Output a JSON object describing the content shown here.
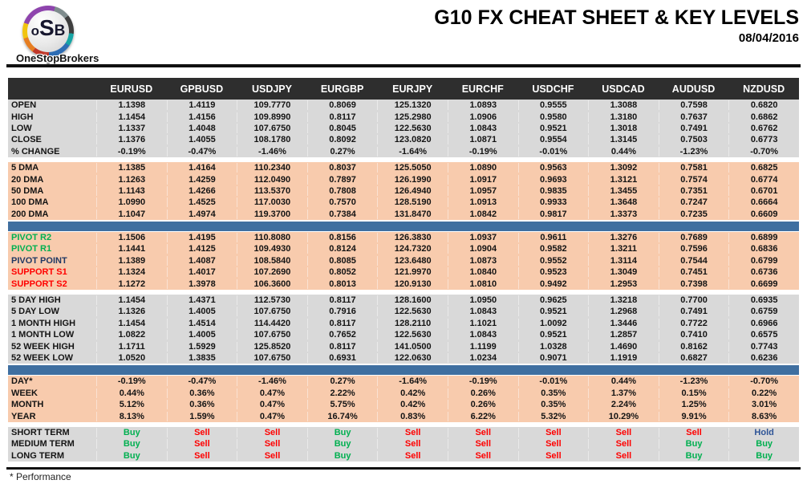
{
  "header": {
    "logo": {
      "o": "o",
      "s": "S",
      "b": "B",
      "brand": "OneStopBrokers"
    },
    "title": "G10 FX CHEAT SHEET & KEY LEVELS",
    "date": "08/04/2016"
  },
  "colors": {
    "header_dark": "#2e2e2e",
    "section_gray": "#D9D9D9",
    "section_peach": "#F8CBAD",
    "separator_blue": "#3F6FA0",
    "buy_green": "#00B050",
    "sell_red": "#FF0000",
    "hold_blue": "#2F5597",
    "pivot_navy": "#1F3864",
    "resistance_green": "#00B050",
    "support_red": "#FF0000"
  },
  "table": {
    "columns": [
      "EURUSD",
      "GPBUSD",
      "USDJPY",
      "EURGBP",
      "EURJPY",
      "EURCHF",
      "USDCHF",
      "USDCAD",
      "AUDUSD",
      "NZDUSD"
    ],
    "signal_colors": {
      "Buy": "#00B050",
      "Sell": "#FF0000",
      "Hold": "#2F5597"
    },
    "sections": [
      {
        "name": "ohlc",
        "bg": "gray",
        "sep": "none",
        "rows": [
          {
            "label": "OPEN",
            "values": [
              "1.1398",
              "1.4119",
              "109.7770",
              "0.8069",
              "125.1320",
              "1.0893",
              "0.9555",
              "1.3088",
              "0.7598",
              "0.6820"
            ]
          },
          {
            "label": "HIGH",
            "values": [
              "1.1454",
              "1.4156",
              "109.8990",
              "0.8117",
              "125.2980",
              "1.0906",
              "0.9580",
              "1.3180",
              "0.7637",
              "0.6862"
            ]
          },
          {
            "label": "LOW",
            "values": [
              "1.1337",
              "1.4048",
              "107.6750",
              "0.8045",
              "122.5630",
              "1.0843",
              "0.9521",
              "1.3018",
              "0.7491",
              "0.6762"
            ]
          },
          {
            "label": "CLOSE",
            "values": [
              "1.1376",
              "1.4055",
              "108.1780",
              "0.8092",
              "123.0820",
              "1.0871",
              "0.9554",
              "1.3145",
              "0.7503",
              "0.6773"
            ]
          },
          {
            "label": "% CHANGE",
            "values": [
              "-0.19%",
              "-0.47%",
              "-1.46%",
              "0.27%",
              "-1.64%",
              "-0.19%",
              "-0.01%",
              "0.44%",
              "-1.23%",
              "-0.70%"
            ]
          }
        ]
      },
      {
        "name": "moving-averages",
        "bg": "peach",
        "sep": "gap",
        "rows": [
          {
            "label": "5 DMA",
            "values": [
              "1.1385",
              "1.4164",
              "110.2340",
              "0.8037",
              "125.5050",
              "1.0890",
              "0.9563",
              "1.3092",
              "0.7581",
              "0.6825"
            ]
          },
          {
            "label": "20 DMA",
            "values": [
              "1.1263",
              "1.4259",
              "112.0490",
              "0.7897",
              "126.1990",
              "1.0917",
              "0.9693",
              "1.3121",
              "0.7574",
              "0.6774"
            ]
          },
          {
            "label": "50 DMA",
            "values": [
              "1.1143",
              "1.4266",
              "113.5370",
              "0.7808",
              "126.4940",
              "1.0957",
              "0.9835",
              "1.3455",
              "0.7351",
              "0.6701"
            ]
          },
          {
            "label": "100 DMA",
            "values": [
              "1.0990",
              "1.4525",
              "117.0030",
              "0.7570",
              "128.5190",
              "1.0913",
              "0.9933",
              "1.3648",
              "0.7247",
              "0.6664"
            ]
          },
          {
            "label": "200 DMA",
            "values": [
              "1.1047",
              "1.4974",
              "119.3700",
              "0.7384",
              "131.8470",
              "1.0842",
              "0.9817",
              "1.3373",
              "0.7235",
              "0.6609"
            ]
          }
        ]
      },
      {
        "name": "pivots",
        "bg": "peach",
        "sep": "bar",
        "rows": [
          {
            "label": "PIVOT R2",
            "label_color": "#00B050",
            "values": [
              "1.1506",
              "1.4195",
              "110.8080",
              "0.8156",
              "126.3830",
              "1.0937",
              "0.9611",
              "1.3276",
              "0.7689",
              "0.6899"
            ]
          },
          {
            "label": "PIVOT R1",
            "label_color": "#00B050",
            "values": [
              "1.1441",
              "1.4125",
              "109.4930",
              "0.8124",
              "124.7320",
              "1.0904",
              "0.9582",
              "1.3211",
              "0.7596",
              "0.6836"
            ]
          },
          {
            "label": "PIVOT POINT",
            "label_color": "#1F3864",
            "values": [
              "1.1389",
              "1.4087",
              "108.5840",
              "0.8085",
              "123.6480",
              "1.0873",
              "0.9552",
              "1.3114",
              "0.7544",
              "0.6799"
            ]
          },
          {
            "label": "SUPPORT S1",
            "label_color": "#FF0000",
            "values": [
              "1.1324",
              "1.4017",
              "107.2690",
              "0.8052",
              "121.9970",
              "1.0840",
              "0.9523",
              "1.3049",
              "0.7451",
              "0.6736"
            ]
          },
          {
            "label": "SUPPORT S2",
            "label_color": "#FF0000",
            "values": [
              "1.1272",
              "1.3978",
              "106.3600",
              "0.8013",
              "120.9130",
              "1.0810",
              "0.9492",
              "1.2953",
              "0.7398",
              "0.6699"
            ]
          }
        ]
      },
      {
        "name": "ranges",
        "bg": "gray",
        "sep": "gap",
        "rows": [
          {
            "label": "5 DAY HIGH",
            "values": [
              "1.1454",
              "1.4371",
              "112.5730",
              "0.8117",
              "128.1600",
              "1.0950",
              "0.9625",
              "1.3218",
              "0.7700",
              "0.6935"
            ]
          },
          {
            "label": "5 DAY LOW",
            "values": [
              "1.1326",
              "1.4005",
              "107.6750",
              "0.7916",
              "122.5630",
              "1.0843",
              "0.9521",
              "1.2968",
              "0.7491",
              "0.6759"
            ]
          },
          {
            "label": "1 MONTH HIGH",
            "values": [
              "1.1454",
              "1.4514",
              "114.4420",
              "0.8117",
              "128.2110",
              "1.1021",
              "1.0092",
              "1.3446",
              "0.7722",
              "0.6966"
            ]
          },
          {
            "label": "1 MONTH LOW",
            "values": [
              "1.0822",
              "1.4005",
              "107.6750",
              "0.7652",
              "122.5630",
              "1.0843",
              "0.9521",
              "1.2857",
              "0.7410",
              "0.6575"
            ]
          },
          {
            "label": "52 WEEK HIGH",
            "values": [
              "1.1711",
              "1.5929",
              "125.8520",
              "0.8117",
              "141.0500",
              "1.1199",
              "1.0328",
              "1.4690",
              "0.8162",
              "0.7743"
            ]
          },
          {
            "label": "52 WEEK LOW",
            "values": [
              "1.0520",
              "1.3835",
              "107.6750",
              "0.6931",
              "122.0630",
              "1.0234",
              "0.9071",
              "1.1919",
              "0.6827",
              "0.6236"
            ]
          }
        ]
      },
      {
        "name": "performance",
        "bg": "peach",
        "sep": "bar",
        "rows": [
          {
            "label": "DAY*",
            "values": [
              "-0.19%",
              "-0.47%",
              "-1.46%",
              "0.27%",
              "-1.64%",
              "-0.19%",
              "-0.01%",
              "0.44%",
              "-1.23%",
              "-0.70%"
            ]
          },
          {
            "label": "WEEK",
            "values": [
              "0.44%",
              "0.36%",
              "0.47%",
              "2.22%",
              "0.42%",
              "0.26%",
              "0.35%",
              "1.37%",
              "0.15%",
              "0.22%"
            ]
          },
          {
            "label": "MONTH",
            "values": [
              "5.12%",
              "0.36%",
              "0.47%",
              "5.75%",
              "0.42%",
              "0.26%",
              "0.35%",
              "2.24%",
              "1.25%",
              "3.01%"
            ]
          },
          {
            "label": "YEAR",
            "values": [
              "8.13%",
              "1.59%",
              "0.47%",
              "16.74%",
              "0.83%",
              "6.22%",
              "5.32%",
              "10.29%",
              "9.91%",
              "8.63%"
            ]
          }
        ]
      },
      {
        "name": "signals",
        "bg": "gray",
        "sep": "gap",
        "type": "signal",
        "rows": [
          {
            "label": "SHORT TERM",
            "values": [
              "Buy",
              "Sell",
              "Sell",
              "Buy",
              "Sell",
              "Sell",
              "Sell",
              "Sell",
              "Sell",
              "Hold"
            ]
          },
          {
            "label": "MEDIUM TERM",
            "values": [
              "Buy",
              "Sell",
              "Sell",
              "Buy",
              "Sell",
              "Sell",
              "Sell",
              "Sell",
              "Buy",
              "Buy"
            ]
          },
          {
            "label": "LONG TERM",
            "values": [
              "Buy",
              "Sell",
              "Sell",
              "Buy",
              "Sell",
              "Sell",
              "Sell",
              "Sell",
              "Buy",
              "Buy"
            ]
          }
        ]
      }
    ]
  },
  "footnote": "* Performance"
}
